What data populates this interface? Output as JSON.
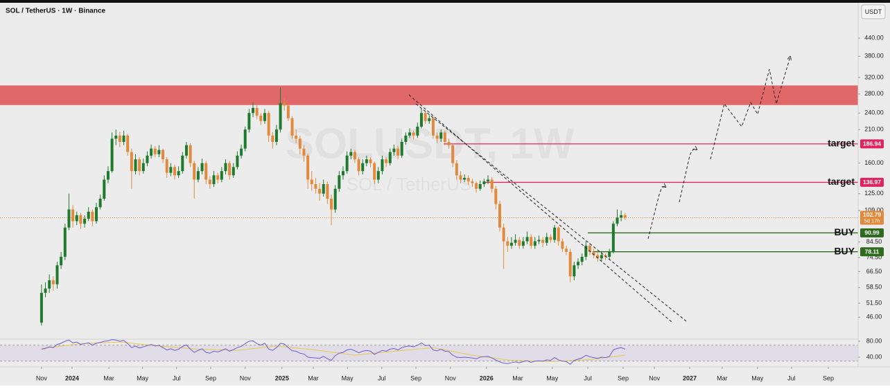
{
  "chart_data": {
    "type": "candlestick",
    "title": "SOL / TetherUS · 1W · Binance",
    "currency_button": "USDT",
    "watermark": "SOLUSDT, 1W",
    "watermark_subtitle": "SOL / TetherUS",
    "log_scale": true,
    "grid": false,
    "up_color": "#1e7a2c",
    "down_color": "#e3893b",
    "xlim": [
      -10.6,
      208.5
    ],
    "ylim": [
      38.5,
      599
    ],
    "xticks": [
      {
        "value": 0,
        "label": "Nov"
      },
      {
        "value": 7.8,
        "label": "2024"
      },
      {
        "value": 17.2,
        "label": "Mar"
      },
      {
        "value": 25.8,
        "label": "May"
      },
      {
        "value": 34.5,
        "label": "Jul"
      },
      {
        "value": 43.2,
        "label": "Sep"
      },
      {
        "value": 52.0,
        "label": "Nov"
      },
      {
        "value": 61.4,
        "label": "2025"
      },
      {
        "value": 69.4,
        "label": "Mar"
      },
      {
        "value": 78.1,
        "label": "May"
      },
      {
        "value": 86.9,
        "label": "Jul"
      },
      {
        "value": 95.6,
        "label": "Sep"
      },
      {
        "value": 104.4,
        "label": "Nov"
      },
      {
        "value": 113.6,
        "label": "2026"
      },
      {
        "value": 121.6,
        "label": "Mar"
      },
      {
        "value": 130.4,
        "label": "May"
      },
      {
        "value": 139.5,
        "label": "Jul"
      },
      {
        "value": 148.5,
        "label": "Sep"
      },
      {
        "value": 156.5,
        "label": "Nov"
      },
      {
        "value": 165.5,
        "label": "2027"
      },
      {
        "value": 173.8,
        "label": "Mar"
      },
      {
        "value": 182.8,
        "label": "May"
      },
      {
        "value": 191.5,
        "label": "Jul"
      },
      {
        "value": 200.9,
        "label": "Sep"
      }
    ],
    "yticks": [
      {
        "value": 440,
        "label": "440.00"
      },
      {
        "value": 380,
        "label": "380.00"
      },
      {
        "value": 320,
        "label": "320.00"
      },
      {
        "value": 280,
        "label": "280.00"
      },
      {
        "value": 240,
        "label": "240.00"
      },
      {
        "value": 210,
        "label": "210.00"
      },
      {
        "value": 160,
        "label": "160.00"
      },
      {
        "value": 125,
        "label": "125.00"
      },
      {
        "value": 109,
        "label": "109.00"
      },
      {
        "value": 84.5,
        "label": "84.50"
      },
      {
        "value": 74.5,
        "label": "74.50"
      },
      {
        "value": 66.5,
        "label": "66.50"
      },
      {
        "value": 58.5,
        "label": "58.50"
      },
      {
        "value": 51.5,
        "label": "51.50"
      },
      {
        "value": 46,
        "label": "46.00"
      }
    ],
    "zone": [
      256,
      300
    ],
    "zone_color": "rgba(221,52,52,0.72)",
    "levels": [
      {
        "label": "target",
        "value": 186.94,
        "color": "#e0245e"
      },
      {
        "label": "target",
        "value": 136.97,
        "color": "#e0245e"
      },
      {
        "label": "BUY",
        "value": 90.99,
        "color": "#2e6b1f"
      },
      {
        "label": "BUY",
        "value": 78.11,
        "color": "#2e6b1f"
      }
    ],
    "last_price": 102.79,
    "last_price_color": "#e3893b",
    "countdown": "5d 17h",
    "x": [
      0,
      1,
      2,
      3,
      4,
      5,
      6,
      7,
      8,
      9,
      10,
      11,
      12,
      13,
      14,
      15,
      16,
      17,
      18,
      19,
      20,
      21,
      22,
      23,
      24,
      25,
      26,
      27,
      28,
      29,
      30,
      31,
      32,
      33,
      34,
      35,
      36,
      37,
      38,
      39,
      40,
      41,
      42,
      43,
      44,
      45,
      46,
      47,
      48,
      49,
      50,
      51,
      52,
      53,
      54,
      55,
      56,
      57,
      58,
      59,
      60,
      61,
      62,
      63,
      64,
      65,
      66,
      67,
      68,
      69,
      70,
      71,
      72,
      73,
      74,
      75,
      76,
      77,
      78,
      79,
      80,
      81,
      82,
      83,
      84,
      85,
      86,
      87,
      88,
      89,
      90,
      91,
      92,
      93,
      94,
      95,
      96,
      97,
      98,
      99,
      100,
      101,
      102,
      103,
      104,
      105,
      106,
      107,
      108,
      109,
      110,
      111,
      112,
      113,
      114,
      115,
      116,
      117,
      118,
      119,
      120,
      121,
      122,
      123,
      124,
      125,
      126,
      127,
      128,
      129,
      130,
      131,
      132,
      133,
      134,
      135,
      136,
      137,
      138,
      139,
      140,
      141,
      142,
      143,
      144,
      145,
      146,
      147,
      148,
      149
    ],
    "ohlc": [
      [
        44,
        60,
        43,
        56
      ],
      [
        56,
        61,
        54,
        58
      ],
      [
        58,
        65,
        56,
        62
      ],
      [
        62,
        64,
        57,
        60
      ],
      [
        60,
        72,
        58,
        70
      ],
      [
        70,
        78,
        68,
        75
      ],
      [
        75,
        98,
        73,
        95
      ],
      [
        95,
        125,
        93,
        110
      ],
      [
        110,
        114,
        95,
        100
      ],
      [
        100,
        108,
        97,
        105
      ],
      [
        105,
        107,
        94,
        98
      ],
      [
        98,
        105,
        95,
        102
      ],
      [
        102,
        112,
        100,
        108
      ],
      [
        108,
        110,
        96,
        100
      ],
      [
        100,
        116,
        98,
        112
      ],
      [
        112,
        124,
        110,
        120
      ],
      [
        120,
        145,
        118,
        140
      ],
      [
        140,
        156,
        136,
        150
      ],
      [
        150,
        205,
        148,
        195
      ],
      [
        195,
        210,
        185,
        200
      ],
      [
        200,
        206,
        182,
        190
      ],
      [
        190,
        208,
        185,
        200
      ],
      [
        200,
        203,
        170,
        175
      ],
      [
        175,
        180,
        130,
        150
      ],
      [
        150,
        172,
        146,
        165
      ],
      [
        165,
        168,
        145,
        150
      ],
      [
        150,
        166,
        147,
        160
      ],
      [
        160,
        176,
        156,
        170
      ],
      [
        170,
        186,
        166,
        180
      ],
      [
        180,
        184,
        168,
        172
      ],
      [
        172,
        185,
        168,
        178
      ],
      [
        178,
        180,
        160,
        165
      ],
      [
        165,
        168,
        142,
        148
      ],
      [
        148,
        160,
        144,
        155
      ],
      [
        155,
        158,
        140,
        145
      ],
      [
        145,
        156,
        142,
        150
      ],
      [
        150,
        175,
        147,
        170
      ],
      [
        170,
        190,
        166,
        185
      ],
      [
        185,
        188,
        155,
        160
      ],
      [
        160,
        163,
        120,
        140
      ],
      [
        140,
        155,
        137,
        150
      ],
      [
        150,
        166,
        146,
        160
      ],
      [
        160,
        163,
        135,
        140
      ],
      [
        140,
        144,
        130,
        135
      ],
      [
        135,
        150,
        132,
        145
      ],
      [
        145,
        148,
        136,
        140
      ],
      [
        140,
        155,
        137,
        150
      ],
      [
        150,
        165,
        146,
        160
      ],
      [
        160,
        163,
        140,
        145
      ],
      [
        145,
        160,
        142,
        155
      ],
      [
        155,
        176,
        152,
        170
      ],
      [
        170,
        186,
        166,
        180
      ],
      [
        180,
        215,
        176,
        210
      ],
      [
        210,
        248,
        205,
        240
      ],
      [
        240,
        262,
        232,
        250
      ],
      [
        250,
        256,
        228,
        235
      ],
      [
        235,
        240,
        218,
        225
      ],
      [
        225,
        248,
        220,
        240
      ],
      [
        240,
        244,
        190,
        200
      ],
      [
        200,
        206,
        180,
        190
      ],
      [
        190,
        218,
        185,
        210
      ],
      [
        210,
        295,
        205,
        260
      ],
      [
        260,
        270,
        245,
        255
      ],
      [
        255,
        258,
        225,
        230
      ],
      [
        230,
        234,
        195,
        200
      ],
      [
        200,
        210,
        188,
        195
      ],
      [
        195,
        200,
        172,
        180
      ],
      [
        180,
        185,
        162,
        170
      ],
      [
        170,
        173,
        130,
        140
      ],
      [
        140,
        150,
        128,
        135
      ],
      [
        135,
        142,
        125,
        130
      ],
      [
        130,
        136,
        118,
        125
      ],
      [
        125,
        140,
        122,
        135
      ],
      [
        135,
        138,
        115,
        120
      ],
      [
        120,
        124,
        97,
        110
      ],
      [
        110,
        134,
        107,
        130
      ],
      [
        130,
        150,
        127,
        145
      ],
      [
        145,
        156,
        140,
        150
      ],
      [
        150,
        176,
        147,
        170
      ],
      [
        170,
        180,
        165,
        175
      ],
      [
        175,
        178,
        160,
        165
      ],
      [
        165,
        168,
        145,
        150
      ],
      [
        150,
        165,
        146,
        160
      ],
      [
        160,
        170,
        156,
        165
      ],
      [
        165,
        168,
        155,
        160
      ],
      [
        160,
        162,
        135,
        140
      ],
      [
        140,
        155,
        136,
        150
      ],
      [
        150,
        170,
        146,
        165
      ],
      [
        165,
        168,
        155,
        160
      ],
      [
        160,
        180,
        157,
        175
      ],
      [
        175,
        186,
        170,
        180
      ],
      [
        180,
        184,
        165,
        170
      ],
      [
        170,
        195,
        167,
        190
      ],
      [
        190,
        205,
        186,
        200
      ],
      [
        200,
        212,
        196,
        205
      ],
      [
        205,
        208,
        194,
        200
      ],
      [
        200,
        222,
        196,
        215
      ],
      [
        215,
        250,
        212,
        240
      ],
      [
        240,
        245,
        220,
        225
      ],
      [
        225,
        236,
        220,
        230
      ],
      [
        230,
        233,
        195,
        200
      ],
      [
        200,
        205,
        188,
        195
      ],
      [
        195,
        210,
        190,
        205
      ],
      [
        205,
        208,
        185,
        190
      ],
      [
        190,
        195,
        180,
        185
      ],
      [
        185,
        188,
        155,
        160
      ],
      [
        160,
        164,
        140,
        145
      ],
      [
        145,
        150,
        136,
        140
      ],
      [
        140,
        146,
        137,
        142
      ],
      [
        142,
        145,
        134,
        138
      ],
      [
        138,
        141,
        132,
        136
      ],
      [
        136,
        138,
        126,
        130
      ],
      [
        130,
        139,
        128,
        135
      ],
      [
        135,
        141,
        132,
        138
      ],
      [
        138,
        145,
        135,
        140
      ],
      [
        140,
        143,
        126,
        130
      ],
      [
        130,
        133,
        110,
        115
      ],
      [
        115,
        118,
        92,
        95
      ],
      [
        95,
        98,
        68,
        85
      ],
      [
        85,
        88,
        78,
        82
      ],
      [
        82,
        88,
        80,
        84
      ],
      [
        84,
        90,
        82,
        86
      ],
      [
        86,
        88,
        80,
        82
      ],
      [
        82,
        88,
        80,
        85
      ],
      [
        85,
        92,
        83,
        88
      ],
      [
        88,
        90,
        80,
        82
      ],
      [
        82,
        88,
        80,
        85
      ],
      [
        85,
        89,
        83,
        86
      ],
      [
        86,
        88,
        81,
        84
      ],
      [
        84,
        91,
        82,
        88
      ],
      [
        88,
        90,
        84,
        86
      ],
      [
        86,
        97,
        84,
        95
      ],
      [
        95,
        96,
        82,
        85
      ],
      [
        85,
        87,
        78,
        80
      ],
      [
        80,
        82,
        76,
        78
      ],
      [
        78,
        80,
        61,
        64
      ],
      [
        64,
        72,
        62,
        70
      ],
      [
        70,
        74,
        68,
        72
      ],
      [
        72,
        77,
        70,
        75
      ],
      [
        75,
        85,
        73,
        82
      ],
      [
        82,
        84,
        76,
        78
      ],
      [
        78,
        80,
        74,
        76
      ],
      [
        76,
        78,
        72,
        74
      ],
      [
        74,
        78,
        72,
        76
      ],
      [
        76,
        77,
        73,
        75
      ],
      [
        75,
        80,
        73,
        78
      ],
      [
        78,
        100,
        77,
        98
      ],
      [
        98,
        110,
        96,
        103
      ],
      [
        103,
        109,
        100,
        105
      ],
      [
        105,
        107,
        101,
        103
      ]
    ],
    "rsi": {
      "color": "#6b5bd6",
      "ylim": [
        15.7,
        85.2
      ],
      "yticks": [
        {
          "value": 80,
          "label": "80.00"
        },
        {
          "value": 40,
          "label": "40.00"
        }
      ],
      "bands": [
        30,
        70
      ],
      "values": [
        60,
        62,
        66,
        64,
        72,
        75,
        80,
        83,
        76,
        78,
        72,
        74,
        76,
        70,
        75,
        77,
        80,
        81,
        84,
        83,
        80,
        82,
        74,
        64,
        68,
        63,
        66,
        69,
        72,
        68,
        70,
        64,
        58,
        61,
        57,
        60,
        67,
        71,
        60,
        52,
        57,
        61,
        52,
        50,
        55,
        53,
        57,
        61,
        55,
        59,
        64,
        67,
        74,
        80,
        81,
        74,
        70,
        75,
        60,
        57,
        64,
        75,
        73,
        64,
        56,
        55,
        50,
        48,
        40,
        39,
        38,
        37,
        42,
        36,
        32,
        44,
        50,
        52,
        58,
        60,
        56,
        51,
        55,
        57,
        55,
        47,
        52,
        57,
        55,
        60,
        62,
        58,
        64,
        67,
        68,
        66,
        70,
        76,
        69,
        70,
        58,
        56,
        60,
        55,
        54,
        45,
        40,
        39,
        40,
        39,
        38,
        36,
        40,
        41,
        42,
        38,
        33,
        28,
        25,
        24,
        26,
        28,
        26,
        29,
        31,
        27,
        30,
        31,
        30,
        33,
        32,
        39,
        33,
        30,
        29,
        22,
        32,
        35,
        38,
        45,
        41,
        39,
        37,
        40,
        39,
        42,
        58,
        62,
        64,
        60
      ],
      "ma_color": "#e6c84a",
      "ma_x": [
        0,
        10,
        20,
        30,
        40,
        50,
        60,
        70,
        80,
        90,
        100,
        110,
        120,
        130,
        140,
        149
      ],
      "ma_values": [
        62,
        74,
        78,
        68,
        60,
        57,
        68,
        58,
        45,
        55,
        64,
        45,
        32,
        29,
        34,
        45
      ]
    }
  }
}
